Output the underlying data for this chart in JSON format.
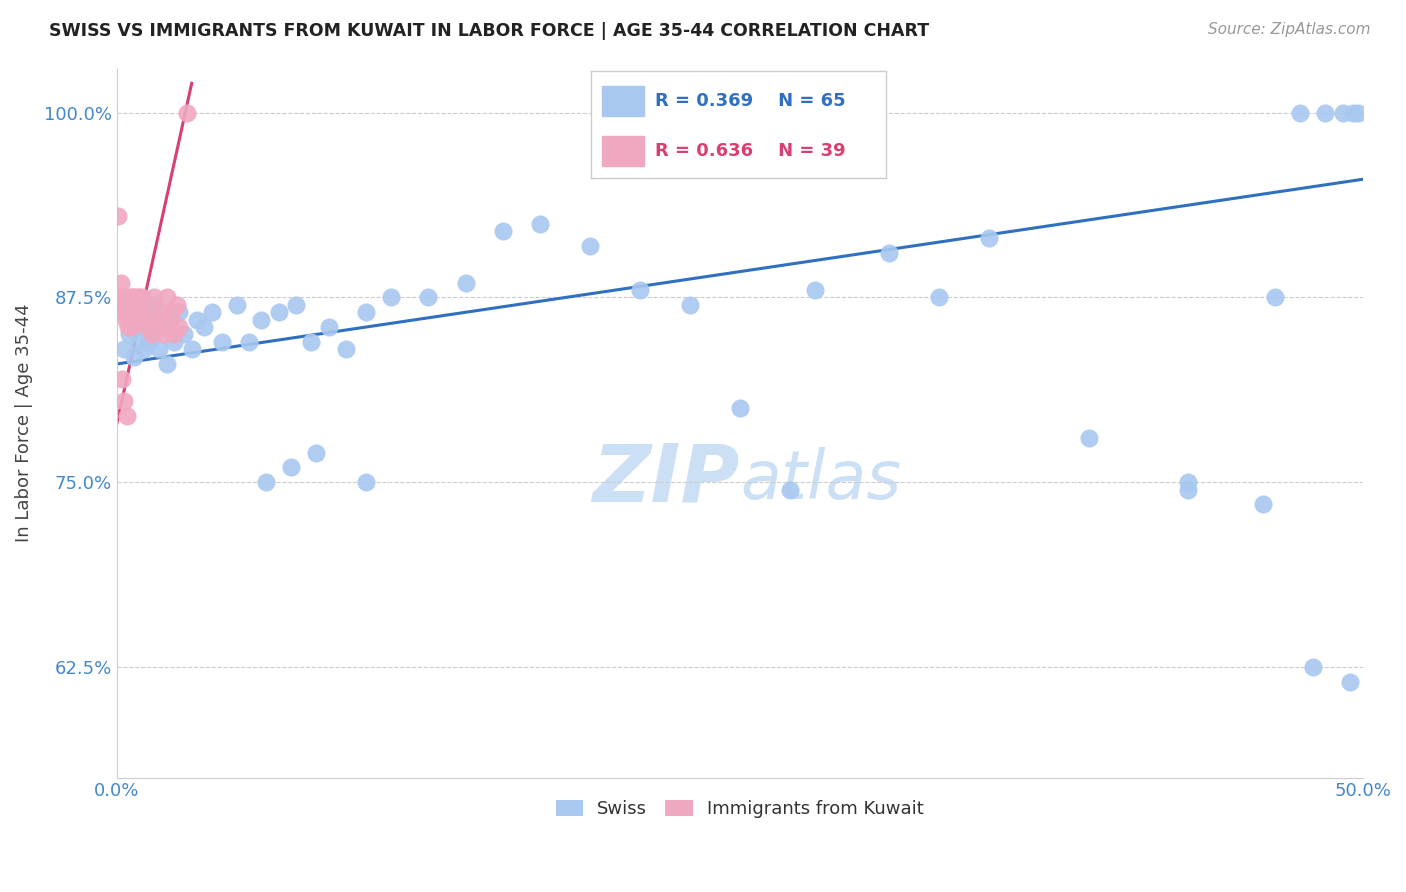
{
  "title": "SWISS VS IMMIGRANTS FROM KUWAIT IN LABOR FORCE | AGE 35-44 CORRELATION CHART",
  "source": "Source: ZipAtlas.com",
  "ylabel": "In Labor Force | Age 35-44",
  "xlim": [
    0.0,
    50.0
  ],
  "ylim": [
    55.0,
    103.0
  ],
  "yticks": [
    62.5,
    75.0,
    87.5,
    100.0
  ],
  "xticks": [
    0.0,
    6.25,
    12.5,
    18.75,
    25.0,
    31.25,
    37.5,
    43.75,
    50.0
  ],
  "blue_color": "#a8c8f0",
  "pink_color": "#f0a8c0",
  "blue_line_color": "#3070c0",
  "pink_line_color": "#d84070",
  "legend_R_blue": "R = 0.369",
  "legend_N_blue": "N = 65",
  "legend_R_pink": "R = 0.636",
  "legend_N_pink": "N = 39",
  "label_swiss": "Swiss",
  "label_kuwait": "Immigrants from Kuwait",
  "axis_label_color": "#4488cc",
  "title_color": "#222222",
  "watermark_color": "#cce0f5",
  "blue_x": [
    0.3,
    0.4,
    0.5,
    0.6,
    0.7,
    0.7,
    0.8,
    0.9,
    1.0,
    1.1,
    1.2,
    1.3,
    1.4,
    1.5,
    1.7,
    1.9,
    2.0,
    2.1,
    2.3,
    2.5,
    2.7,
    3.0,
    3.2,
    3.5,
    3.8,
    4.2,
    4.8,
    5.3,
    5.8,
    6.5,
    7.2,
    7.8,
    8.5,
    9.2,
    10.0,
    11.0,
    12.5,
    14.0,
    15.5,
    17.0,
    19.0,
    21.0,
    23.0,
    25.0,
    28.0,
    31.0,
    35.0,
    39.0,
    43.0,
    46.0,
    47.5,
    48.5,
    49.2,
    49.6,
    49.8,
    6.0,
    7.0,
    8.0,
    10.0,
    27.0,
    33.0,
    43.0,
    46.5,
    48.0,
    49.5
  ],
  "blue_y": [
    84.0,
    86.5,
    85.0,
    87.5,
    83.5,
    85.5,
    86.0,
    84.5,
    85.5,
    84.0,
    86.5,
    84.5,
    85.0,
    87.0,
    84.0,
    85.5,
    83.0,
    86.0,
    84.5,
    86.5,
    85.0,
    84.0,
    86.0,
    85.5,
    86.5,
    84.5,
    87.0,
    84.5,
    86.0,
    86.5,
    87.0,
    84.5,
    85.5,
    84.0,
    86.5,
    87.5,
    87.5,
    88.5,
    92.0,
    92.5,
    91.0,
    88.0,
    87.0,
    80.0,
    88.0,
    90.5,
    91.5,
    78.0,
    74.5,
    73.5,
    100.0,
    100.0,
    100.0,
    100.0,
    100.0,
    75.0,
    76.0,
    77.0,
    75.0,
    74.5,
    87.5,
    75.0,
    87.5,
    62.5,
    61.5
  ],
  "pink_x": [
    0.05,
    0.1,
    0.15,
    0.2,
    0.25,
    0.3,
    0.35,
    0.4,
    0.45,
    0.5,
    0.55,
    0.6,
    0.65,
    0.7,
    0.75,
    0.8,
    0.85,
    0.9,
    0.95,
    1.0,
    1.1,
    1.2,
    1.3,
    1.4,
    1.5,
    1.6,
    1.7,
    1.8,
    1.9,
    2.0,
    2.1,
    2.2,
    2.3,
    2.4,
    2.5,
    0.2,
    0.3,
    0.4,
    2.8
  ],
  "pink_y": [
    93.0,
    87.5,
    88.5,
    87.0,
    86.5,
    87.5,
    86.0,
    87.0,
    85.5,
    87.5,
    85.5,
    87.5,
    87.0,
    87.5,
    86.5,
    87.5,
    86.5,
    87.5,
    86.0,
    87.5,
    86.0,
    85.5,
    86.5,
    85.0,
    87.5,
    86.0,
    85.5,
    86.5,
    85.0,
    87.5,
    85.5,
    86.5,
    85.0,
    87.0,
    85.5,
    82.0,
    80.5,
    79.5,
    100.0
  ],
  "blue_line_x0": 0.0,
  "blue_line_y0": 83.0,
  "blue_line_x1": 50.0,
  "blue_line_y1": 95.5,
  "pink_line_x0": 0.0,
  "pink_line_y0": 79.0,
  "pink_line_x1": 3.0,
  "pink_line_y1": 102.0
}
